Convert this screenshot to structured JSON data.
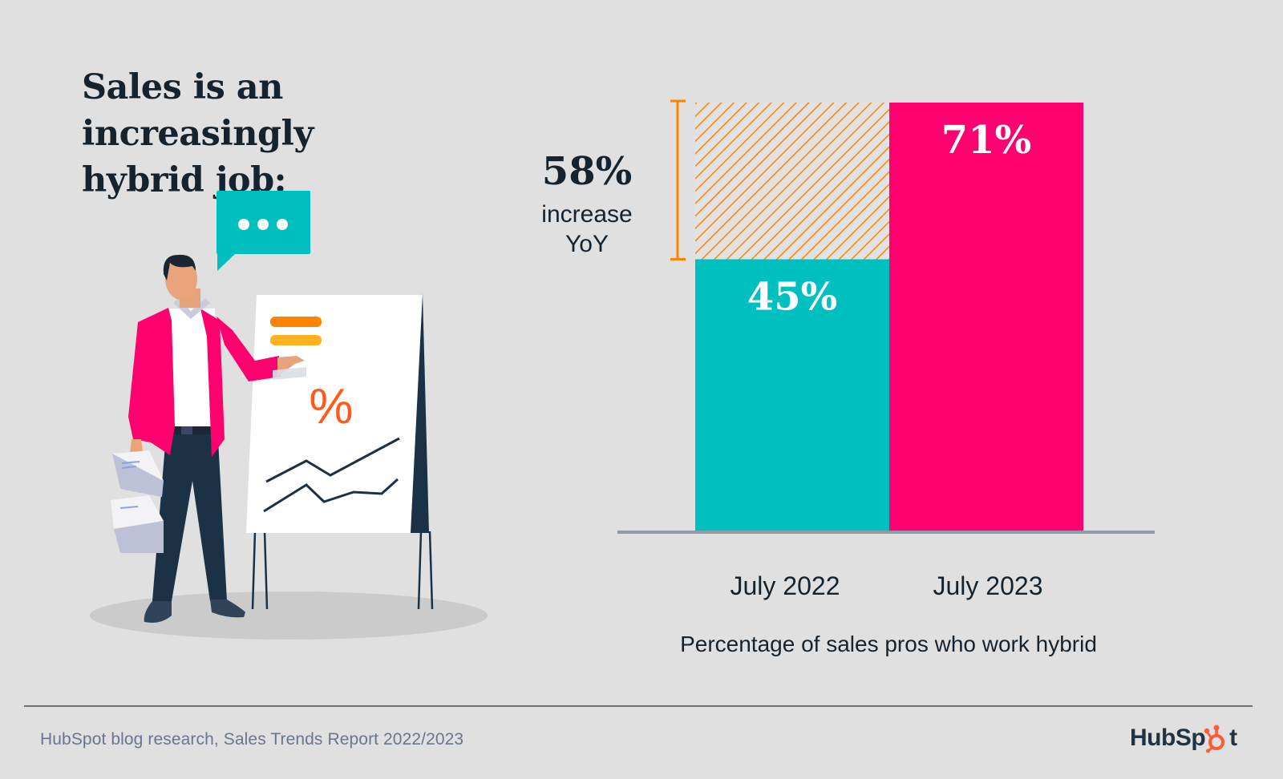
{
  "title": {
    "line1": "Sales is an increasingly",
    "line2": "hybrid job:"
  },
  "colors": {
    "background": "#dfe0df",
    "teal": "#00c0bf",
    "pink": "#ff0070",
    "orange": "#ff8300",
    "navy": "#1b3145",
    "axis": "#8e9aa8"
  },
  "callout": {
    "value": "58%",
    "line1": "increase",
    "line2": "YoY"
  },
  "chart_data": {
    "type": "bar",
    "title": "",
    "xlabel": "Percentage of sales pros who work hybrid",
    "ylabel": "",
    "ylim": [
      0,
      71
    ],
    "categories": [
      "July 2022",
      "July 2023"
    ],
    "values": [
      45,
      71
    ],
    "value_labels": [
      "45%",
      "71%"
    ],
    "unit": "%",
    "grid": false,
    "legend": "none",
    "annotation": {
      "text": "58% increase YoY",
      "from": 45,
      "to": 71,
      "style": "hatched orange region above July 2022 bar with bracket"
    }
  },
  "illustration": {
    "speech_bubble": "...",
    "flipchart_symbol": "%"
  },
  "footer": {
    "source": "HubSpot blog research, Sales Trends Report 2022/2023",
    "logo_prefix": "HubSp",
    "logo_suffix": "t"
  }
}
